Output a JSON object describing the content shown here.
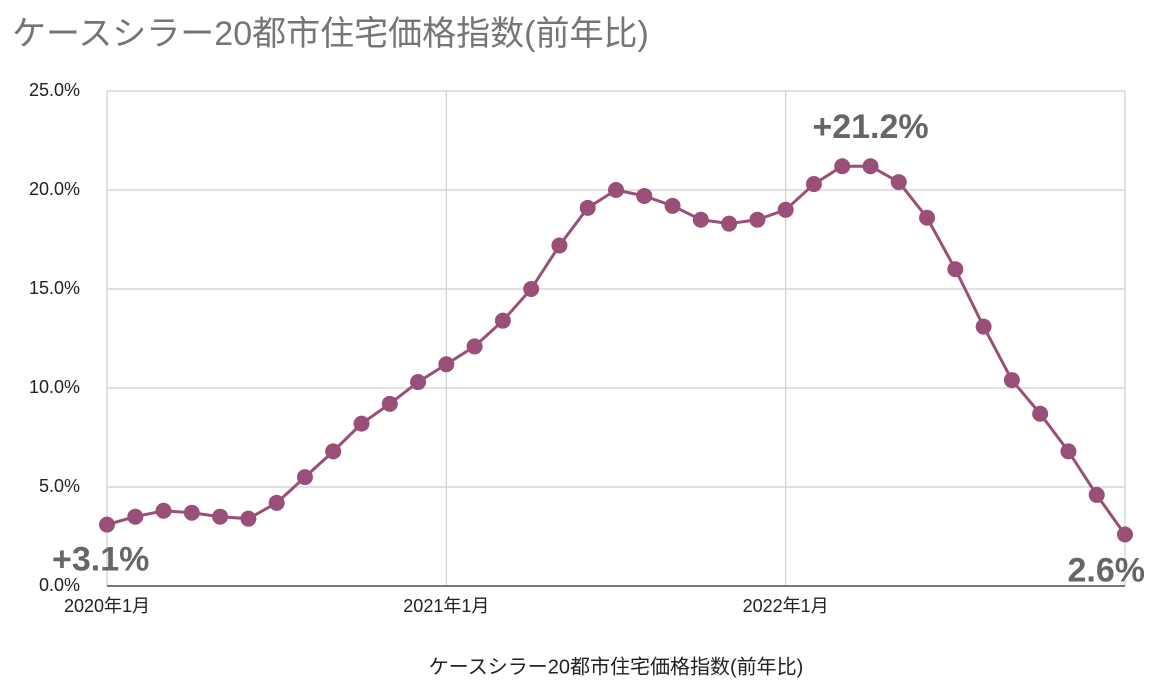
{
  "chart_data": {
    "type": "line",
    "title": "ケースシラー20都市住宅価格指数(前年比)",
    "x_label": "ケースシラー20都市住宅価格指数(前年比)",
    "categories": [
      "2020年1月",
      null,
      null,
      null,
      null,
      null,
      null,
      null,
      null,
      null,
      null,
      null,
      "2021年1月",
      null,
      null,
      null,
      null,
      null,
      null,
      null,
      null,
      null,
      null,
      null,
      "2022年1月",
      null,
      null,
      null,
      null,
      null,
      null,
      null,
      null,
      null,
      null,
      null,
      null
    ],
    "series": [
      {
        "name": "ケースシラー20都市住宅価格指数(前年比)",
        "color": "#9a4f78",
        "values": [
          3.1,
          3.5,
          3.8,
          3.7,
          3.5,
          3.4,
          4.2,
          5.5,
          6.8,
          8.2,
          9.2,
          10.3,
          11.2,
          12.1,
          13.4,
          15.0,
          17.2,
          19.1,
          20.0,
          19.7,
          19.2,
          18.5,
          18.3,
          18.5,
          19.0,
          20.3,
          21.2,
          21.2,
          20.4,
          18.6,
          16.0,
          13.1,
          10.4,
          8.7,
          6.8,
          4.6,
          2.6
        ],
        "value_labels": [
          "+3.1%",
          null,
          null,
          null,
          null,
          null,
          null,
          null,
          null,
          null,
          null,
          null,
          null,
          null,
          null,
          null,
          null,
          null,
          null,
          null,
          null,
          null,
          null,
          null,
          null,
          null,
          null,
          "+21.2%",
          null,
          null,
          null,
          null,
          null,
          null,
          null,
          null,
          "2.6%"
        ]
      }
    ],
    "ylim": [
      0,
      25
    ],
    "yticks": [
      {
        "value": 0,
        "label": "0.0%"
      },
      {
        "value": 5,
        "label": "5.0%"
      },
      {
        "value": 10,
        "label": "10.0%"
      },
      {
        "value": 15,
        "label": "15.0%"
      },
      {
        "value": 20,
        "label": "20.0%"
      },
      {
        "value": 25,
        "label": "25.0%"
      }
    ],
    "grid": true
  }
}
